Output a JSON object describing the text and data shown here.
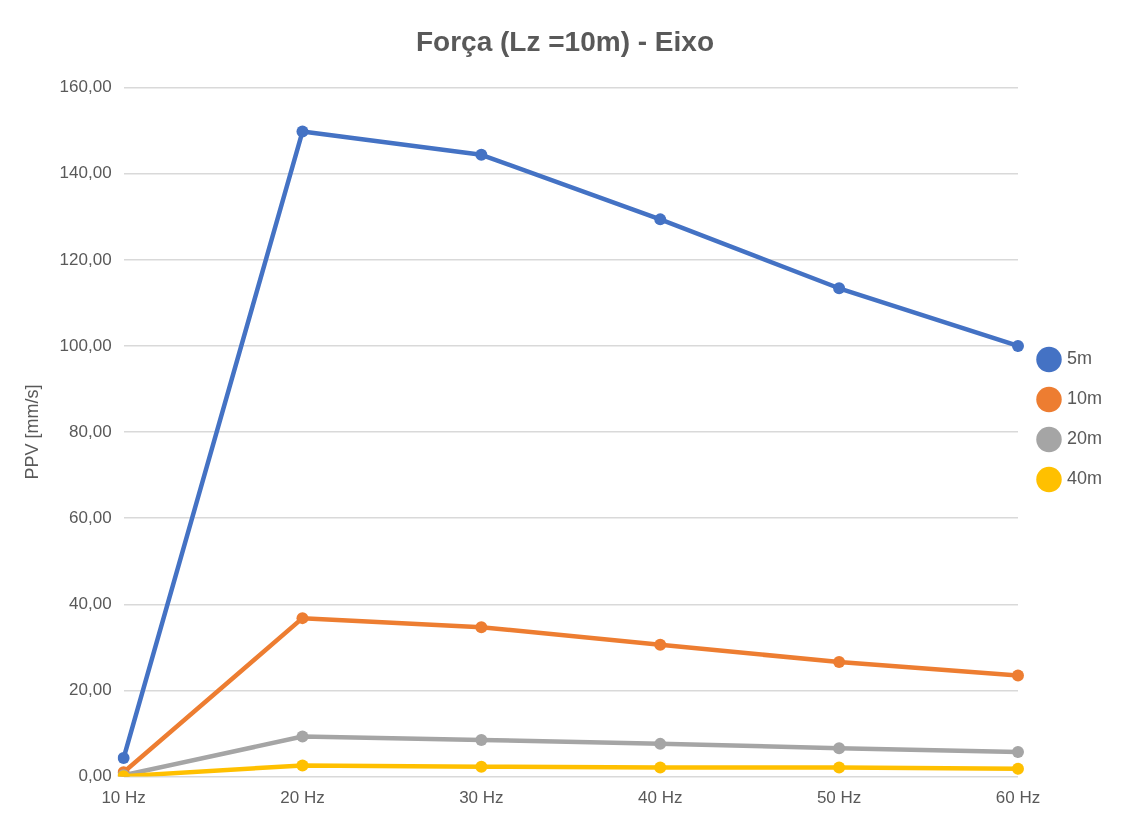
{
  "chart_data": {
    "type": "line",
    "title": "Força (Lz =10m) - Eixo",
    "ylabel": "PPV [mm/s]",
    "categories": [
      "10 Hz",
      "20 Hz",
      "30 Hz",
      "40 Hz",
      "50 Hz",
      "60 Hz"
    ],
    "series": [
      {
        "name": "5m",
        "color": "#4472c4",
        "values": [
          4.3,
          149.8,
          144.4,
          129.4,
          113.4,
          100.0
        ]
      },
      {
        "name": "10m",
        "color": "#ed7d31",
        "values": [
          1.0,
          36.8,
          34.7,
          30.6,
          26.6,
          23.5
        ]
      },
      {
        "name": "20m",
        "color": "#a5a5a5",
        "values": [
          0.3,
          9.3,
          8.5,
          7.6,
          6.6,
          5.7
        ]
      },
      {
        "name": "40m",
        "color": "#ffc000",
        "values": [
          0.1,
          2.6,
          2.3,
          2.1,
          2.1,
          1.8
        ]
      }
    ],
    "ylim": [
      0,
      160
    ],
    "yticks": [
      {
        "value": 0,
        "label": "0,00"
      },
      {
        "value": 20,
        "label": "20,00"
      },
      {
        "value": 40,
        "label": "40,00"
      },
      {
        "value": 60,
        "label": "60,00"
      },
      {
        "value": 80,
        "label": "80,00"
      },
      {
        "value": 100,
        "label": "100,00"
      },
      {
        "value": 120,
        "label": "120,00"
      },
      {
        "value": 140,
        "label": "140,00"
      },
      {
        "value": 160,
        "label": "160,00"
      }
    ],
    "grid": "y",
    "legend": "right",
    "marker": "circle",
    "line_style": "solid"
  }
}
